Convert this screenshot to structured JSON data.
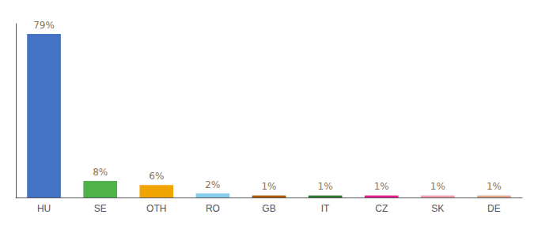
{
  "chart_data": {
    "type": "bar",
    "categories": [
      "HU",
      "SE",
      "OTH",
      "RO",
      "GB",
      "IT",
      "CZ",
      "SK",
      "DE"
    ],
    "values": [
      79,
      8,
      6,
      2,
      1,
      1,
      1,
      1,
      1
    ],
    "value_labels": [
      "79%",
      "8%",
      "6%",
      "2%",
      "1%",
      "1%",
      "1%",
      "1%",
      "1%"
    ],
    "colors": [
      "#4472c4",
      "#4db34a",
      "#f0a500",
      "#87ceeb",
      "#b05a00",
      "#2d7a2d",
      "#e91e8c",
      "#f4a0b0",
      "#e8a890"
    ],
    "ylim": [
      0,
      84
    ],
    "grid": false,
    "data_labels": true,
    "tick_labels": "x"
  }
}
